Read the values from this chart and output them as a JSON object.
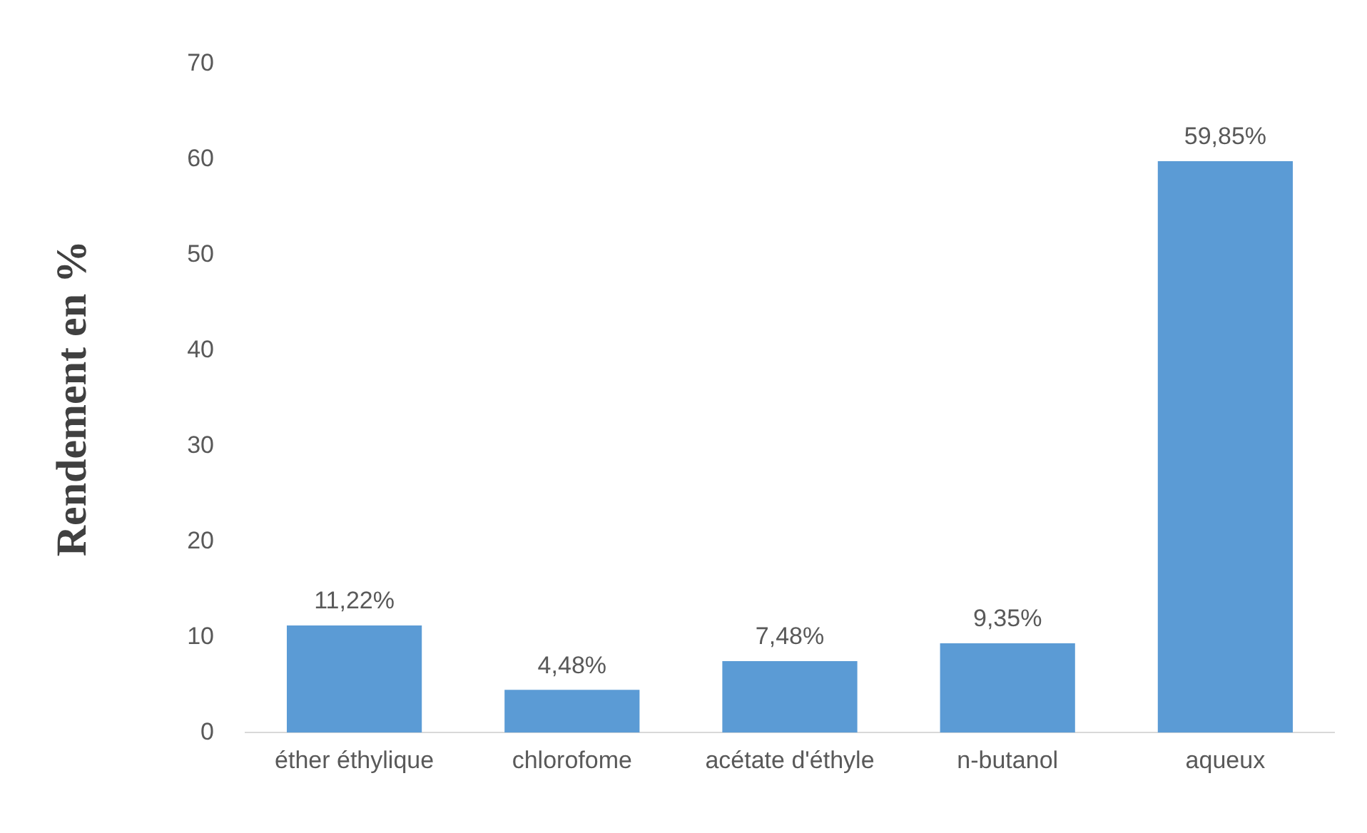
{
  "chart_data": {
    "type": "bar",
    "ylabel": "Rendement en %",
    "categories": [
      "éther éthylique",
      "chlorofome",
      "acétate d'éthyle",
      "n-butanol",
      "aqueux"
    ],
    "values": [
      11.22,
      4.48,
      7.48,
      9.35,
      59.85
    ],
    "value_labels": [
      "11,22%",
      "4,48%",
      "7,48%",
      "9,35%",
      "59,85%"
    ],
    "color": "#5b9bd5",
    "ylim": [
      0,
      70
    ],
    "yticks": [
      0,
      10,
      20,
      30,
      40,
      50,
      60,
      70
    ],
    "grid": false,
    "legend": false
  }
}
